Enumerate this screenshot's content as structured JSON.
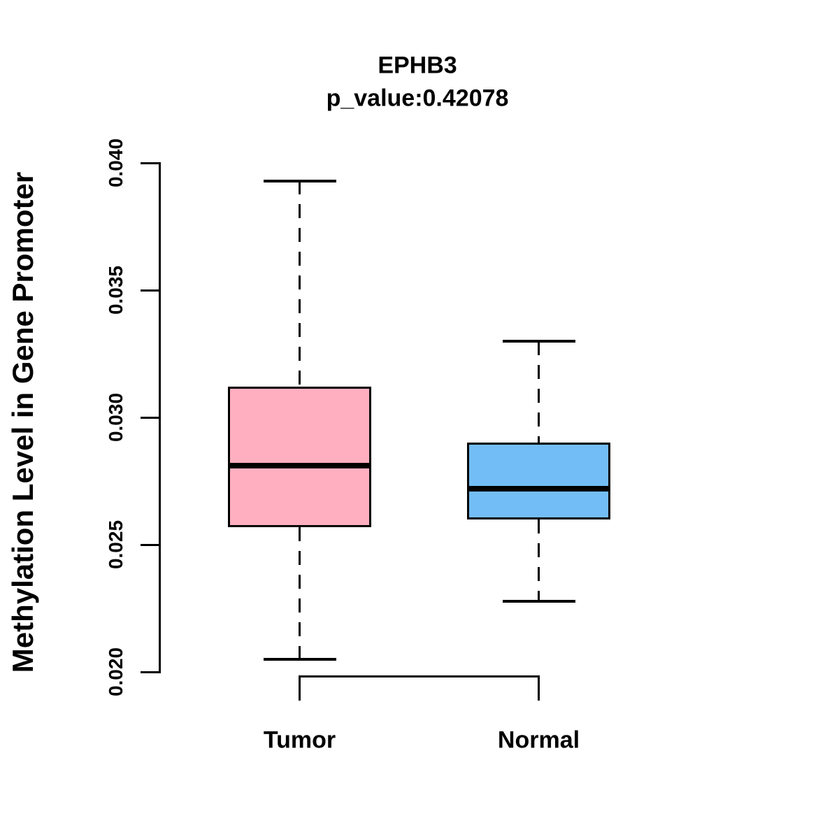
{
  "accent_colors": {
    "tumor_fill": "#FFAFC0",
    "normal_fill": "#73BDF6",
    "line_color": "#000000",
    "background": "#FFFFFF"
  },
  "chart_data": {
    "type": "boxplot",
    "title": "EPHB3",
    "subtitle": "p_value:0.42078",
    "ylabel": "Methylation Level in Gene Promoter",
    "xlabel": "",
    "categories": [
      "Tumor",
      "Normal"
    ],
    "ylim": [
      0.02,
      0.04
    ],
    "ytick_values": [
      0.02,
      0.025,
      0.03,
      0.035,
      0.04
    ],
    "ytick_labels": [
      "0.020",
      "0.025",
      "0.030",
      "0.035",
      "0.040"
    ],
    "grid": false,
    "legend": "none",
    "series": [
      {
        "name": "Tumor",
        "color": "#FFAFC0",
        "whisker_low": 0.0205,
        "q1": 0.0257,
        "median": 0.0281,
        "q3": 0.0312,
        "whisker_high": 0.0393
      },
      {
        "name": "Normal",
        "color": "#73BDF6",
        "whisker_low": 0.0228,
        "q1": 0.026,
        "median": 0.0272,
        "q3": 0.029,
        "whisker_high": 0.033
      }
    ]
  }
}
